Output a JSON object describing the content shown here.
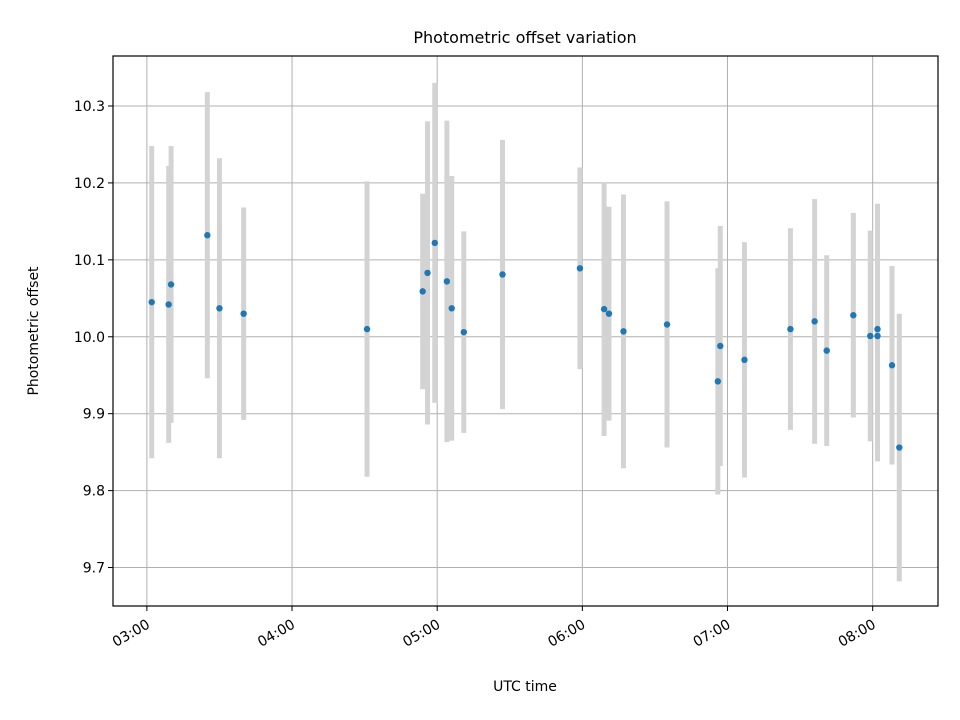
{
  "chart_data": {
    "type": "scatter",
    "title": "Photometric offset variation",
    "xlabel": "UTC time",
    "ylabel": "Photometric offset",
    "x_ticks": [
      "03:00",
      "04:00",
      "05:00",
      "06:00",
      "07:00",
      "08:00"
    ],
    "y_ticks": [
      "9.7",
      "9.8",
      "9.9",
      "10.0",
      "10.1",
      "10.2",
      "10.3"
    ],
    "xlim": [
      "02:46",
      "08:27"
    ],
    "ylim": [
      9.65,
      10.365
    ],
    "grid": true,
    "colors": {
      "point": "#1f77b4",
      "errorbar": "#d3d3d3",
      "grid": "#b0b0b0"
    },
    "points": [
      {
        "x": "03:02",
        "y": 10.045,
        "yerr": 0.203
      },
      {
        "x": "03:09",
        "y": 10.042,
        "yerr": 0.18
      },
      {
        "x": "03:10",
        "y": 10.068,
        "yerr": 0.18
      },
      {
        "x": "03:25",
        "y": 10.132,
        "yerr": 0.186
      },
      {
        "x": "03:30",
        "y": 10.037,
        "yerr": 0.195
      },
      {
        "x": "03:40",
        "y": 10.03,
        "yerr": 0.138
      },
      {
        "x": "04:31",
        "y": 10.01,
        "yerr": 0.192
      },
      {
        "x": "04:54",
        "y": 10.059,
        "yerr": 0.127
      },
      {
        "x": "04:56",
        "y": 10.083,
        "yerr": 0.197
      },
      {
        "x": "04:59",
        "y": 10.122,
        "yerr": 0.208
      },
      {
        "x": "05:04",
        "y": 10.072,
        "yerr": 0.209
      },
      {
        "x": "05:06",
        "y": 10.037,
        "yerr": 0.172
      },
      {
        "x": "05:11",
        "y": 10.006,
        "yerr": 0.131
      },
      {
        "x": "05:27",
        "y": 10.081,
        "yerr": 0.175
      },
      {
        "x": "05:59",
        "y": 10.089,
        "yerr": 0.131
      },
      {
        "x": "06:09",
        "y": 10.036,
        "yerr": 0.165
      },
      {
        "x": "06:11",
        "y": 10.03,
        "yerr": 0.139
      },
      {
        "x": "06:17",
        "y": 10.007,
        "yerr": 0.178
      },
      {
        "x": "06:35",
        "y": 10.016,
        "yerr": 0.16
      },
      {
        "x": "06:56",
        "y": 9.942,
        "yerr": 0.147
      },
      {
        "x": "06:57",
        "y": 9.988,
        "yerr": 0.156
      },
      {
        "x": "07:07",
        "y": 9.97,
        "yerr": 0.153
      },
      {
        "x": "07:26",
        "y": 10.01,
        "yerr": 0.131
      },
      {
        "x": "07:36",
        "y": 10.02,
        "yerr": 0.159
      },
      {
        "x": "07:41",
        "y": 9.982,
        "yerr": 0.124
      },
      {
        "x": "07:52",
        "y": 10.028,
        "yerr": 0.133
      },
      {
        "x": "07:59",
        "y": 10.001,
        "yerr": 0.137
      },
      {
        "x": "08:02",
        "y": 10.001,
        "yerr": 0.163
      },
      {
        "x": "08:02",
        "y": 10.01,
        "yerr": 0.163
      },
      {
        "x": "08:08",
        "y": 9.963,
        "yerr": 0.129
      },
      {
        "x": "08:11",
        "y": 9.856,
        "yerr": 0.174
      }
    ]
  }
}
